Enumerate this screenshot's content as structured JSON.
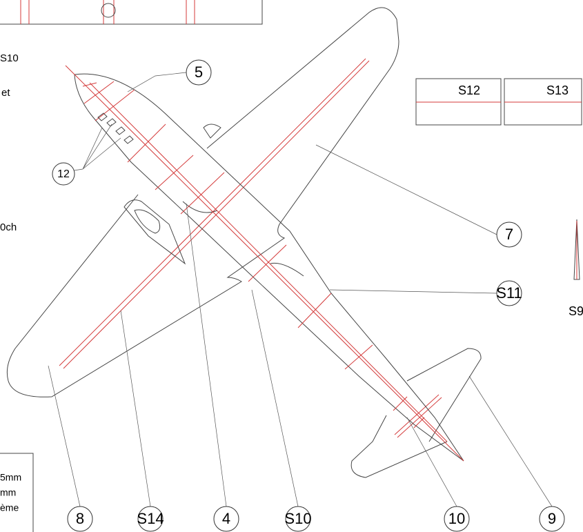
{
  "callouts": [
    "5",
    "12",
    "7",
    "S11",
    "8",
    "S14",
    "4",
    "S10",
    "10",
    "9"
  ],
  "parts": [
    "S12",
    "S13",
    "S9"
  ],
  "margin_text": [
    "S10",
    "et",
    "0ch",
    "5mm",
    "mm",
    "ème"
  ]
}
